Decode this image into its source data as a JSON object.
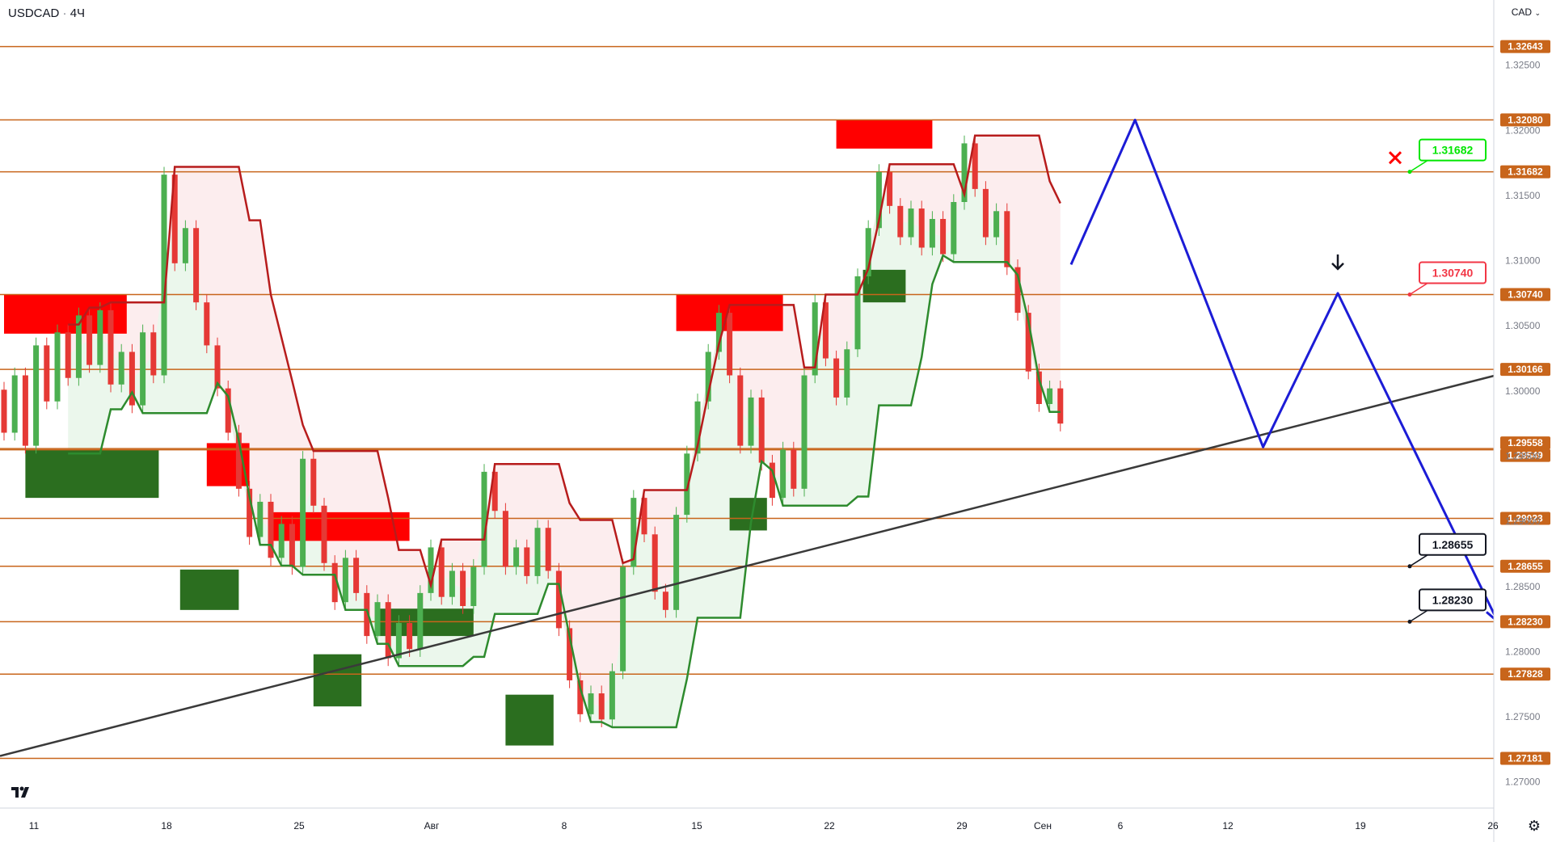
{
  "header": {
    "symbol": "USDCAD",
    "separator": "·",
    "interval": "4Ч",
    "currency_label": "CAD"
  },
  "chart_data": {
    "type": "line",
    "symbol": "USDCAD",
    "timeframe": "4Ч",
    "ylim": [
      1.268,
      1.33
    ],
    "price_ticks": [
      "1.32500",
      "1.32000",
      "1.31500",
      "1.31000",
      "1.30500",
      "1.30000",
      "1.29500",
      "1.29000",
      "1.28500",
      "1.28000",
      "1.27500",
      "1.27000"
    ],
    "x_ticks": [
      "11",
      "18",
      "25",
      "Авг",
      "8",
      "15",
      "22",
      "29",
      "Сен",
      "6",
      "12",
      "19",
      "26"
    ],
    "levels": [
      {
        "label": "1.32643",
        "value": 1.32643
      },
      {
        "label": "1.32080",
        "value": 1.3208
      },
      {
        "label": "1.31682",
        "value": 1.31682
      },
      {
        "label": "1.30740",
        "value": 1.3074
      },
      {
        "label": "1.30166",
        "value": 1.30166
      },
      {
        "label": "1.29558",
        "value": 1.29558
      },
      {
        "label": "1.29549",
        "value": 1.29549
      },
      {
        "label": "1.29023",
        "value": 1.29023
      },
      {
        "label": "1.28655",
        "value": 1.28655
      },
      {
        "label": "1.28230",
        "value": 1.2823
      },
      {
        "label": "1.27828",
        "value": 1.27828
      },
      {
        "label": "1.27181",
        "value": 1.27181
      }
    ],
    "callouts": [
      {
        "label": "1.31682",
        "value": 1.31682,
        "color": "#00e600"
      },
      {
        "label": "1.30740",
        "value": 1.3074,
        "color": "#f23645"
      },
      {
        "label": "1.28655",
        "value": 1.28655,
        "color": "#131722"
      },
      {
        "label": "1.28230",
        "value": 1.2823,
        "color": "#131722"
      }
    ],
    "forecast_path": [
      {
        "bar": 100,
        "price": 1.3097
      },
      {
        "bar": 106,
        "price": 1.3208
      },
      {
        "bar": 118,
        "price": 1.2957
      },
      {
        "bar": 125,
        "price": 1.3075
      },
      {
        "bar": 140,
        "price": 1.2823
      }
    ],
    "trendline": [
      {
        "bar": 0,
        "price": 1.272
      },
      {
        "bar": 135,
        "price": 1.3002
      }
    ],
    "colors": {
      "level_line": "#c8651b",
      "level_label_bg": "#c8651b",
      "forecast": "#1c1cd6",
      "trendline": "#3a3a3a",
      "supply_zone": "#ff0000",
      "demand_zone": "#2b6e1f",
      "bull_candle": "#4caf50",
      "bear_candle": "#e53935",
      "stop_upper": "#b71c1c",
      "stop_lower": "#2e8b2e"
    },
    "supply_zones": [
      {
        "from": 0,
        "to": 11.5,
        "top": 1.3074,
        "bottom": 1.3044
      },
      {
        "from": 19,
        "to": 23,
        "top": 1.296,
        "bottom": 1.2927
      },
      {
        "from": 25,
        "to": 38,
        "top": 1.2907,
        "bottom": 1.2885
      },
      {
        "from": 63,
        "to": 73,
        "top": 1.3074,
        "bottom": 1.3046
      },
      {
        "from": 78,
        "to": 87,
        "top": 1.3208,
        "bottom": 1.3186
      }
    ],
    "demand_zones": [
      {
        "from": 2,
        "to": 14.5,
        "top": 1.2955,
        "bottom": 1.2918
      },
      {
        "from": 16.5,
        "to": 22,
        "top": 1.2863,
        "bottom": 1.2832
      },
      {
        "from": 29,
        "to": 33.5,
        "top": 1.2798,
        "bottom": 1.2758
      },
      {
        "from": 35,
        "to": 44,
        "top": 1.2833,
        "bottom": 1.2812
      },
      {
        "from": 47,
        "to": 51.5,
        "top": 1.2767,
        "bottom": 1.2728
      },
      {
        "from": 68,
        "to": 71.5,
        "top": 1.2918,
        "bottom": 1.2893
      },
      {
        "from": 80.5,
        "to": 84.5,
        "top": 1.3093,
        "bottom": 1.3068
      }
    ],
    "candles": [
      [
        1.3001,
        1.2968
      ],
      [
        1.2968,
        1.3012
      ],
      [
        1.3012,
        1.2958
      ],
      [
        1.2958,
        1.3035
      ],
      [
        1.3035,
        1.2992
      ],
      [
        1.2992,
        1.3045
      ],
      [
        1.3045,
        1.301
      ],
      [
        1.301,
        1.3058
      ],
      [
        1.3058,
        1.302
      ],
      [
        1.302,
        1.3062
      ],
      [
        1.3062,
        1.3005
      ],
      [
        1.3005,
        1.303
      ],
      [
        1.303,
        1.2989
      ],
      [
        1.2989,
        1.3045
      ],
      [
        1.3045,
        1.3012
      ],
      [
        1.3012,
        1.3166
      ],
      [
        1.3166,
        1.3098
      ],
      [
        1.3098,
        1.3125
      ],
      [
        1.3125,
        1.3068
      ],
      [
        1.3068,
        1.3035
      ],
      [
        1.3035,
        1.3002
      ],
      [
        1.3002,
        1.2968
      ],
      [
        1.2968,
        1.2925
      ],
      [
        1.2925,
        1.2888
      ],
      [
        1.2888,
        1.2915
      ],
      [
        1.2915,
        1.2872
      ],
      [
        1.2872,
        1.2898
      ],
      [
        1.2898,
        1.2865
      ],
      [
        1.2865,
        1.2948
      ],
      [
        1.2948,
        1.2912
      ],
      [
        1.2912,
        1.2868
      ],
      [
        1.2868,
        1.2838
      ],
      [
        1.2838,
        1.2872
      ],
      [
        1.2872,
        1.2845
      ],
      [
        1.2845,
        1.2812
      ],
      [
        1.2812,
        1.2838
      ],
      [
        1.2838,
        1.2795
      ],
      [
        1.2795,
        1.2822
      ],
      [
        1.2822,
        1.2802
      ],
      [
        1.2802,
        1.2845
      ],
      [
        1.2845,
        1.288
      ],
      [
        1.288,
        1.2842
      ],
      [
        1.2842,
        1.2862
      ],
      [
        1.2862,
        1.2835
      ],
      [
        1.2835,
        1.2865
      ],
      [
        1.2865,
        1.2938
      ],
      [
        1.2938,
        1.2908
      ],
      [
        1.2908,
        1.2865
      ],
      [
        1.2865,
        1.288
      ],
      [
        1.288,
        1.2858
      ],
      [
        1.2858,
        1.2895
      ],
      [
        1.2895,
        1.2862
      ],
      [
        1.2862,
        1.2818
      ],
      [
        1.2818,
        1.2778
      ],
      [
        1.2778,
        1.2752
      ],
      [
        1.2752,
        1.2768
      ],
      [
        1.2768,
        1.2748
      ],
      [
        1.2748,
        1.2785
      ],
      [
        1.2785,
        1.2865
      ],
      [
        1.2865,
        1.2918
      ],
      [
        1.2918,
        1.289
      ],
      [
        1.289,
        1.2846
      ],
      [
        1.2846,
        1.2832
      ],
      [
        1.2832,
        1.2905
      ],
      [
        1.2905,
        1.2952
      ],
      [
        1.2952,
        1.2992
      ],
      [
        1.2992,
        1.303
      ],
      [
        1.303,
        1.306
      ],
      [
        1.306,
        1.3012
      ],
      [
        1.3012,
        1.2958
      ],
      [
        1.2958,
        1.2995
      ],
      [
        1.2995,
        1.2945
      ],
      [
        1.2945,
        1.2918
      ],
      [
        1.2918,
        1.2955
      ],
      [
        1.2955,
        1.2925
      ],
      [
        1.2925,
        1.3012
      ],
      [
        1.3012,
        1.3068
      ],
      [
        1.3068,
        1.3025
      ],
      [
        1.3025,
        1.2995
      ],
      [
        1.2995,
        1.3032
      ],
      [
        1.3032,
        1.3088
      ],
      [
        1.3088,
        1.3125
      ],
      [
        1.3125,
        1.3168
      ],
      [
        1.3168,
        1.3142
      ],
      [
        1.3142,
        1.3118
      ],
      [
        1.3118,
        1.314
      ],
      [
        1.314,
        1.311
      ],
      [
        1.311,
        1.3132
      ],
      [
        1.3132,
        1.3105
      ],
      [
        1.3105,
        1.3145
      ],
      [
        1.3145,
        1.319
      ],
      [
        1.319,
        1.3155
      ],
      [
        1.3155,
        1.3118
      ],
      [
        1.3118,
        1.3138
      ],
      [
        1.3138,
        1.3095
      ],
      [
        1.3095,
        1.306
      ],
      [
        1.306,
        1.3015
      ],
      [
        1.3015,
        1.299
      ],
      [
        1.299,
        1.3002
      ],
      [
        1.3002,
        1.2975
      ]
    ]
  }
}
